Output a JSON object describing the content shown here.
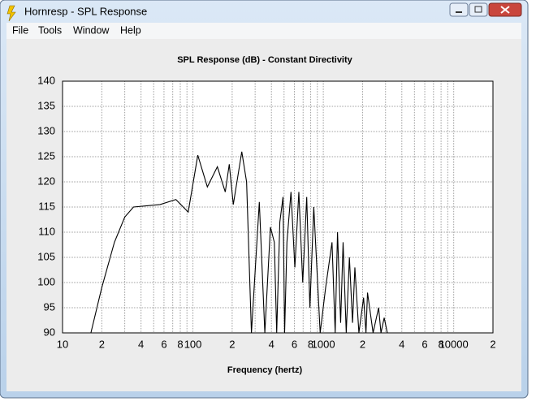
{
  "window": {
    "title": "Hornresp - SPL Response",
    "menu": [
      "File",
      "Tools",
      "Window",
      "Help"
    ]
  },
  "chart_data": {
    "type": "line",
    "title": "SPL Response (dB) - Constant Directivity",
    "x_label": "Frequency (hertz)",
    "x_log": true,
    "grid": true,
    "xlim": [
      10,
      20000
    ],
    "ylim": [
      90,
      140
    ],
    "yticks": [
      90,
      95,
      100,
      105,
      110,
      115,
      120,
      125,
      130,
      135,
      140
    ],
    "xticks": [
      10,
      {
        "value": 20,
        "label": "2"
      },
      {
        "value": 40,
        "label": "4"
      },
      {
        "value": 60,
        "label": "6"
      },
      {
        "value": 80,
        "label": "8"
      },
      100,
      {
        "value": 200,
        "label": "2"
      },
      {
        "value": 400,
        "label": "4"
      },
      {
        "value": 600,
        "label": "6"
      },
      {
        "value": 800,
        "label": "8"
      },
      1000,
      {
        "value": 2000,
        "label": "2"
      },
      {
        "value": 4000,
        "label": "4"
      },
      {
        "value": 6000,
        "label": "6"
      },
      {
        "value": 8000,
        "label": "8"
      },
      10000,
      {
        "value": 20000,
        "label": "2"
      }
    ],
    "xminor": [
      30,
      50,
      70,
      90,
      300,
      500,
      700,
      900,
      3000,
      5000,
      7000,
      9000
    ],
    "x": [
      16.5,
      20,
      25,
      30,
      35,
      56,
      74,
      92,
      109,
      129,
      154,
      177,
      190,
      204,
      237,
      258,
      281,
      323,
      356,
      393,
      421,
      439,
      464,
      491,
      505,
      526,
      565,
      605,
      649,
      695,
      746,
      789,
      845,
      946,
      1042,
      1166,
      1233,
      1285,
      1358,
      1418,
      1499,
      1585,
      1675,
      1746,
      1874,
      2037,
      2124,
      2183,
      2408,
      2655,
      2768,
      2930,
      3097
    ],
    "series": [
      {
        "color": "#000000",
        "values": [
          90,
          99,
          108,
          113,
          115,
          115.5,
          116.5,
          114,
          125.3,
          119,
          123,
          118,
          123.5,
          115.5,
          126,
          120,
          90,
          116,
          90,
          111,
          108,
          90,
          112,
          117,
          90,
          108,
          118,
          103,
          118,
          100,
          117,
          95,
          115,
          90,
          99,
          108,
          90,
          110,
          92,
          108,
          90,
          105,
          92,
          103,
          90,
          97,
          90,
          98,
          90,
          95,
          90,
          93,
          90
        ]
      }
    ]
  }
}
